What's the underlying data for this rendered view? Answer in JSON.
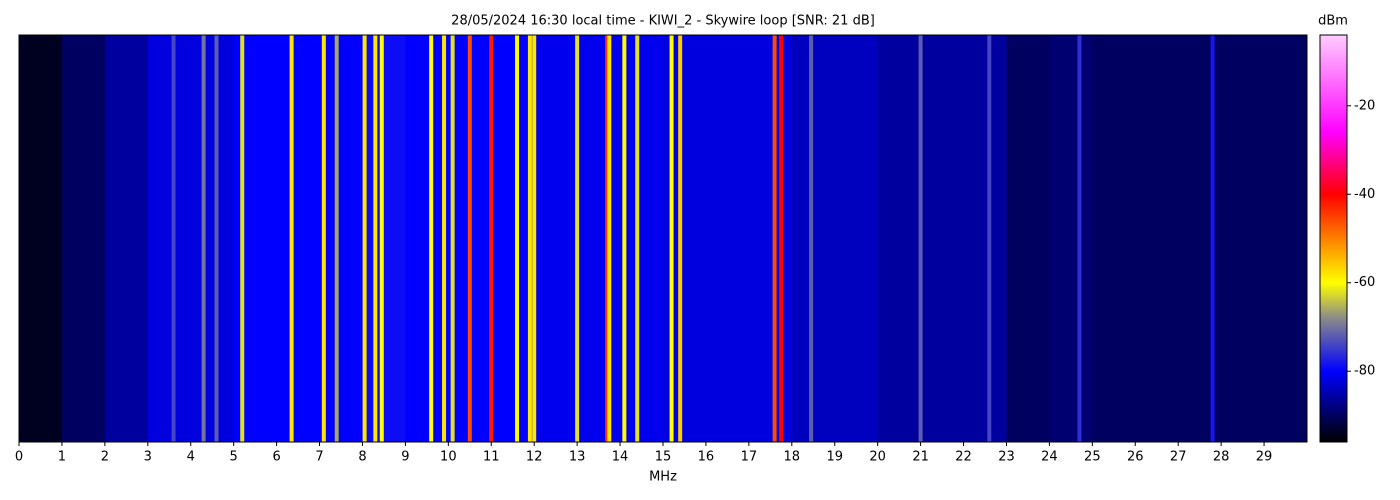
{
  "chart_data": {
    "type": "spectrogram",
    "title": "28/05/2024 16:30 local time - KIWI_2 - Skywire loop [SNR: 21 dB]",
    "xlabel": "MHz",
    "colorbar_label": "dBm",
    "xlim": [
      0,
      30
    ],
    "xticks": [
      0,
      1,
      2,
      3,
      4,
      5,
      6,
      7,
      8,
      9,
      10,
      11,
      12,
      13,
      14,
      15,
      16,
      17,
      18,
      19,
      20,
      21,
      22,
      23,
      24,
      25,
      26,
      27,
      28,
      29
    ],
    "clim": [
      -96,
      -4
    ],
    "cticks": [
      -80,
      -60,
      -40,
      -20
    ],
    "colormap": [
      {
        "value": -96,
        "color": "#000000"
      },
      {
        "value": -80,
        "color": "#0000ff"
      },
      {
        "value": -68,
        "color": "#8a8a8a"
      },
      {
        "value": -60,
        "color": "#ffff00"
      },
      {
        "value": -40,
        "color": "#ff0000"
      },
      {
        "value": -26,
        "color": "#ff00ff"
      },
      {
        "value": -4,
        "color": "#ffccff"
      }
    ],
    "noise_floor": {
      "x": [
        0.5,
        1.5,
        2.5,
        3.5,
        4.5,
        5.5,
        6.5,
        7.5,
        8.5,
        9.5,
        10.5,
        11.5,
        12.5,
        13.5,
        14.5,
        15.5,
        16.5,
        17.5,
        18.5,
        19.5,
        20.5,
        21.5,
        22.5,
        23.5,
        24.5,
        25.5,
        26.5,
        27.5,
        28.5,
        29.5
      ],
      "values": [
        -94,
        -90,
        -86,
        -82,
        -82,
        -80,
        -80,
        -80,
        -79,
        -80,
        -80,
        -80,
        -81,
        -81,
        -81,
        -82,
        -82,
        -82,
        -84,
        -84,
        -86,
        -86,
        -86,
        -90,
        -89,
        -90,
        -90,
        -90,
        -90,
        -90
      ]
    },
    "signals": {
      "x": [
        3.6,
        4.3,
        4.6,
        5.2,
        6.35,
        7.1,
        7.4,
        8.05,
        8.3,
        8.45,
        9.6,
        9.9,
        10.1,
        10.5,
        11.0,
        11.6,
        11.9,
        12.0,
        13.0,
        13.7,
        13.75,
        14.1,
        14.4,
        15.2,
        15.4,
        17.6,
        17.75,
        18.45,
        21.0,
        22.6,
        24.7,
        27.8
      ],
      "values": [
        -74,
        -70,
        -72,
        -62,
        -58,
        -58,
        -66,
        -58,
        -58,
        -60,
        -60,
        -58,
        -62,
        -46,
        -42,
        -60,
        -58,
        -58,
        -62,
        -44,
        -58,
        -60,
        -62,
        -60,
        -56,
        -46,
        -40,
        -72,
        -72,
        -74,
        -76,
        -78
      ]
    }
  }
}
